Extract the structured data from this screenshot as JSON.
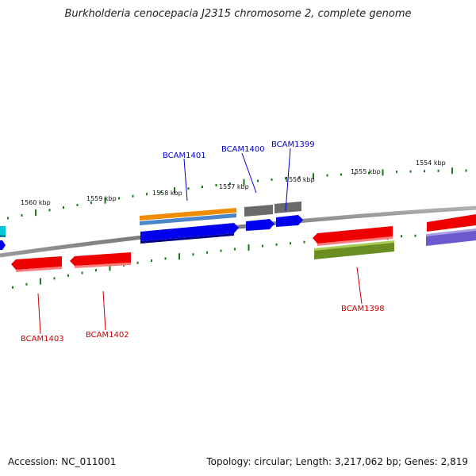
{
  "title": "Burkholderia cenocepacia J2315 chromosome 2, complete genome",
  "footer": {
    "accession": "Accession: NC_011001",
    "stats": "Topology: circular; Length: 3,217,062 bp; Genes: 2,819"
  },
  "scale_ticks": [
    {
      "label": "1560 kbp"
    },
    {
      "label": "1559 kbp"
    },
    {
      "label": "1558 kbp"
    },
    {
      "label": "1557 kbp"
    },
    {
      "label": "1556 kbp"
    },
    {
      "label": "1555 kbp"
    },
    {
      "label": "1554 kbp"
    }
  ],
  "gene_labels": [
    {
      "label": "BCAM1401",
      "strand": "forward",
      "color": "#0000cc"
    },
    {
      "label": "BCAM1400",
      "strand": "forward",
      "color": "#0000cc"
    },
    {
      "label": "BCAM1399",
      "strand": "forward",
      "color": "#0000cc"
    },
    {
      "label": "BCAM1403",
      "strand": "reverse",
      "color": "#cc0000"
    },
    {
      "label": "BCAM1402",
      "strand": "reverse",
      "color": "#cc0000"
    },
    {
      "label": "BCAM1398",
      "strand": "reverse",
      "color": "#cc0000"
    }
  ],
  "colors": {
    "backbone": "#808080",
    "tick": "#1a7a1a",
    "forward_cds": "#0000ee",
    "reverse_cds": "#ee0000",
    "orange_feature": "#f08c00",
    "steel_feature": "#4a86c8",
    "gray_feature": "#6a6a6a",
    "olive_feature": "#6b8e23",
    "lavender_feature": "#6a5acd",
    "cyan_feature": "#00c8d8"
  }
}
